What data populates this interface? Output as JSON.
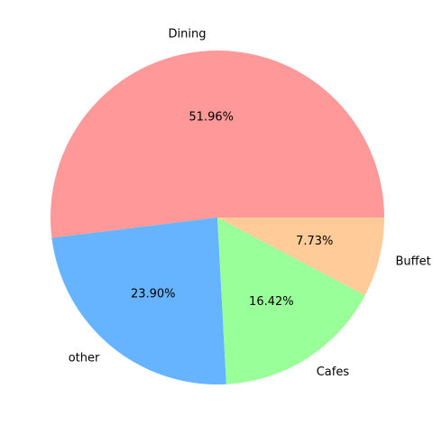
{
  "chart_data": {
    "type": "pie",
    "title": "",
    "categories": [
      "Dining",
      "other",
      "Cafes",
      "Buffet"
    ],
    "values": [
      51.96,
      23.9,
      16.42,
      7.73
    ],
    "percent_labels": [
      "51.96%",
      "23.90%",
      "16.42%",
      "7.73%"
    ],
    "colors": [
      "#ff9999",
      "#66b3ff",
      "#99ff99",
      "#ffcc99"
    ],
    "start_angle_deg": 0,
    "direction": "counterclockwise",
    "legend": "none"
  }
}
